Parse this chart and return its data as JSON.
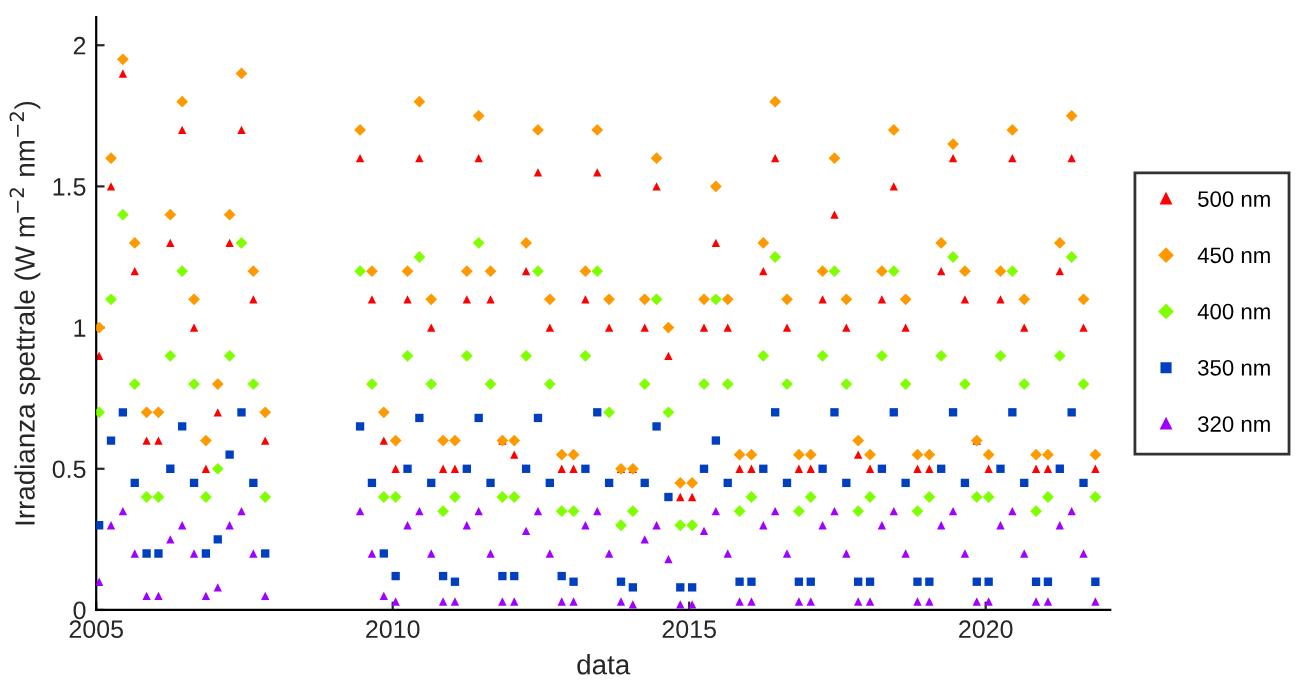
{
  "chart_data": {
    "type": "scatter",
    "xlabel": "data",
    "ylabel": "Irradianza spettrale (W m$^{−2}$ nm$^{−2}$)",
    "x": [
      2005.05,
      2005.25,
      2005.45,
      2005.65,
      2005.85,
      2006.05,
      2006.25,
      2006.45,
      2006.65,
      2006.85,
      2007.05,
      2007.25,
      2007.45,
      2007.65,
      2007.85,
      2009.45,
      2009.65,
      2009.85,
      2010.05,
      2010.25,
      2010.45,
      2010.65,
      2010.85,
      2011.05,
      2011.25,
      2011.45,
      2011.65,
      2011.85,
      2012.05,
      2012.25,
      2012.45,
      2012.65,
      2012.85,
      2013.05,
      2013.25,
      2013.45,
      2013.65,
      2013.85,
      2014.05,
      2014.25,
      2014.45,
      2014.65,
      2014.85,
      2015.05,
      2015.25,
      2015.45,
      2015.65,
      2015.85,
      2016.05,
      2016.25,
      2016.45,
      2016.65,
      2016.85,
      2017.05,
      2017.25,
      2017.45,
      2017.65,
      2017.85,
      2018.05,
      2018.25,
      2018.45,
      2018.65,
      2018.85,
      2019.05,
      2019.25,
      2019.45,
      2019.65,
      2019.85,
      2020.05,
      2020.25,
      2020.45,
      2020.65,
      2020.85,
      2021.05,
      2021.25,
      2021.45,
      2021.65,
      2021.85
    ],
    "series": [
      {
        "name": "500 nm",
        "color": "#ff0000",
        "marker": "triangle",
        "values": [
          0.9,
          1.5,
          1.9,
          1.2,
          0.6,
          0.6,
          1.3,
          1.7,
          1.0,
          0.5,
          0.7,
          1.3,
          1.7,
          1.1,
          0.6,
          1.6,
          1.1,
          0.6,
          0.5,
          1.1,
          1.6,
          1.0,
          0.5,
          0.5,
          1.1,
          1.6,
          1.1,
          0.6,
          0.55,
          1.2,
          1.55,
          1.0,
          0.5,
          0.5,
          1.1,
          1.55,
          1.0,
          0.5,
          0.5,
          1.0,
          1.5,
          0.9,
          0.4,
          0.4,
          1.0,
          1.3,
          1.0,
          0.5,
          0.5,
          1.2,
          1.6,
          1.0,
          0.5,
          0.5,
          1.1,
          1.4,
          1.0,
          0.55,
          0.5,
          1.1,
          1.5,
          1.0,
          0.5,
          0.5,
          1.2,
          1.6,
          1.1,
          0.6,
          0.5,
          1.1,
          1.6,
          1.0,
          0.5,
          0.5,
          1.2,
          1.6,
          1.0,
          0.5
        ]
      },
      {
        "name": "450 nm",
        "color": "#ff9900",
        "marker": "diamond",
        "values": [
          1.0,
          1.6,
          1.95,
          1.3,
          0.7,
          0.7,
          1.4,
          1.8,
          1.1,
          0.6,
          0.8,
          1.4,
          1.9,
          1.2,
          0.7,
          1.7,
          1.2,
          0.7,
          0.6,
          1.2,
          1.8,
          1.1,
          0.6,
          0.6,
          1.2,
          1.75,
          1.2,
          0.6,
          0.6,
          1.3,
          1.7,
          1.1,
          0.55,
          0.55,
          1.2,
          1.7,
          1.1,
          0.5,
          0.5,
          1.1,
          1.6,
          1.0,
          0.45,
          0.45,
          1.1,
          1.5,
          1.1,
          0.55,
          0.55,
          1.3,
          1.8,
          1.1,
          0.55,
          0.55,
          1.2,
          1.6,
          1.1,
          0.6,
          0.55,
          1.2,
          1.7,
          1.1,
          0.55,
          0.55,
          1.3,
          1.65,
          1.2,
          0.6,
          0.55,
          1.2,
          1.7,
          1.1,
          0.55,
          0.55,
          1.3,
          1.75,
          1.1,
          0.55
        ]
      },
      {
        "name": "400 nm",
        "color": "#80ff00",
        "marker": "diamond",
        "values": [
          0.7,
          1.1,
          1.4,
          0.8,
          0.4,
          0.4,
          0.9,
          1.2,
          0.8,
          0.4,
          0.5,
          0.9,
          1.3,
          0.8,
          0.4,
          1.2,
          0.8,
          0.4,
          0.4,
          0.9,
          1.25,
          0.8,
          0.35,
          0.4,
          0.9,
          1.3,
          0.8,
          0.4,
          0.4,
          0.9,
          1.2,
          0.8,
          0.35,
          0.35,
          0.9,
          1.2,
          0.7,
          0.3,
          0.35,
          0.8,
          1.1,
          0.7,
          0.3,
          0.3,
          0.8,
          1.1,
          0.8,
          0.35,
          0.4,
          0.9,
          1.25,
          0.8,
          0.35,
          0.4,
          0.9,
          1.2,
          0.8,
          0.35,
          0.4,
          0.9,
          1.2,
          0.8,
          0.35,
          0.4,
          0.9,
          1.25,
          0.8,
          0.4,
          0.4,
          0.9,
          1.2,
          0.8,
          0.35,
          0.4,
          0.9,
          1.25,
          0.8,
          0.4
        ]
      },
      {
        "name": "350 nm",
        "color": "#0040c0",
        "marker": "square",
        "values": [
          0.3,
          0.6,
          0.7,
          0.45,
          0.2,
          0.2,
          0.5,
          0.65,
          0.45,
          0.2,
          0.25,
          0.55,
          0.7,
          0.45,
          0.2,
          0.65,
          0.45,
          0.2,
          0.12,
          0.5,
          0.68,
          0.45,
          0.12,
          0.1,
          0.5,
          0.68,
          0.45,
          0.12,
          0.12,
          0.5,
          0.68,
          0.45,
          0.12,
          0.1,
          0.5,
          0.7,
          0.45,
          0.1,
          0.08,
          0.45,
          0.65,
          0.4,
          0.08,
          0.08,
          0.5,
          0.6,
          0.45,
          0.1,
          0.1,
          0.5,
          0.7,
          0.45,
          0.1,
          0.1,
          0.5,
          0.7,
          0.45,
          0.1,
          0.1,
          0.5,
          0.7,
          0.45,
          0.1,
          0.1,
          0.5,
          0.7,
          0.45,
          0.1,
          0.1,
          0.5,
          0.7,
          0.45,
          0.1,
          0.1,
          0.5,
          0.7,
          0.45,
          0.1
        ]
      },
      {
        "name": "320 nm",
        "color": "#a000ff",
        "marker": "triangle",
        "values": [
          0.1,
          0.3,
          0.35,
          0.2,
          0.05,
          0.05,
          0.25,
          0.3,
          0.2,
          0.05,
          0.08,
          0.3,
          0.35,
          0.2,
          0.05,
          0.35,
          0.2,
          0.05,
          0.03,
          0.3,
          0.35,
          0.2,
          0.03,
          0.03,
          0.3,
          0.35,
          0.2,
          0.03,
          0.03,
          0.28,
          0.35,
          0.2,
          0.03,
          0.03,
          0.3,
          0.35,
          0.2,
          0.03,
          0.02,
          0.25,
          0.3,
          0.18,
          0.02,
          0.02,
          0.28,
          0.35,
          0.2,
          0.03,
          0.03,
          0.3,
          0.35,
          0.2,
          0.03,
          0.03,
          0.3,
          0.35,
          0.2,
          0.03,
          0.03,
          0.3,
          0.35,
          0.2,
          0.03,
          0.03,
          0.3,
          0.35,
          0.2,
          0.03,
          0.03,
          0.3,
          0.35,
          0.2,
          0.03,
          0.03,
          0.3,
          0.35,
          0.2,
          0.03
        ]
      }
    ],
    "xlim": [
      2005,
      2022.1
    ],
    "xticks": [
      2005,
      2010,
      2015,
      2020
    ],
    "ylim": [
      0,
      2.1
    ],
    "yticks": [
      0,
      0.5,
      1,
      1.5,
      2
    ],
    "grid": false,
    "legend": "right"
  }
}
